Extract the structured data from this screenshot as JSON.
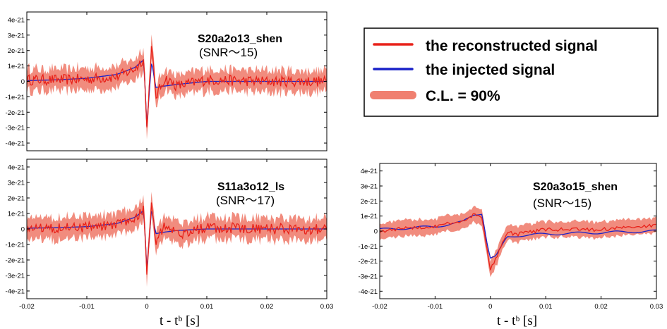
{
  "colors": {
    "reconstructed": "#e8221a",
    "injected": "#1a22c8",
    "band": "#f08070"
  },
  "legend": {
    "reconstructed": "the reconstructed signal",
    "injected": "the injected signal",
    "band": "C.L. = 90%"
  },
  "chart_data": [
    {
      "type": "line",
      "title": "S20a2o13_shen",
      "subtitle": "(SNR〜15)",
      "xlabel": "",
      "xlim": [
        -0.02,
        0.03
      ],
      "ylim": [
        -4.5e-21,
        4.5e-21
      ],
      "yticks": [
        "4e-21",
        "3e-21",
        "2e-21",
        "1e-21",
        "0",
        "-1e-21",
        "-2e-21",
        "-3e-21",
        "-4e-21"
      ],
      "xticks": [],
      "series": [
        {
          "name": "the reconstructed signal",
          "x": [
            -0.02,
            -0.015,
            -0.01,
            -0.005,
            -0.002,
            -0.0005,
            0,
            0.0008,
            0.0015,
            0.003,
            0.005,
            0.01,
            0.02,
            0.03
          ],
          "y": [
            1e-22,
            1e-22,
            1.5e-22,
            3e-22,
            8e-22,
            1.5e-21,
            -3.1e-21,
            2.3e-21,
            -1e-21,
            2e-22,
            -3e-22,
            1e-22,
            0.0,
            0.0
          ]
        },
        {
          "name": "the injected signal",
          "x": [
            -0.02,
            -0.015,
            -0.01,
            -0.005,
            -0.002,
            -0.0005,
            0,
            0.0008,
            0.0015,
            0.003,
            0.005,
            0.01,
            0.02,
            0.03
          ],
          "y": [
            5e-23,
            1e-22,
            2e-22,
            4.5e-22,
            9e-22,
            1.4e-21,
            -2.9e-21,
            1.3e-21,
            -4e-22,
            -3e-22,
            -2e-22,
            0.0,
            0.0,
            0.0
          ]
        }
      ],
      "band_halfwidth": 8e-22
    },
    {
      "type": "line",
      "title": "S11a3o12_ls",
      "subtitle": "(SNR〜17)",
      "xlabel": "t - tᵇ [s]",
      "xlim": [
        -0.02,
        0.03
      ],
      "ylim": [
        -4.5e-21,
        4.5e-21
      ],
      "yticks": [
        "4e-21",
        "3e-21",
        "2e-21",
        "1e-21",
        "0",
        "-1e-21",
        "-2e-21",
        "-3e-21",
        "-4e-21"
      ],
      "xticks": [
        "-0.02",
        "-0.01",
        "0",
        "0.01",
        "0.02",
        "0.03"
      ],
      "series": [
        {
          "name": "the reconstructed signal",
          "x": [
            -0.02,
            -0.015,
            -0.01,
            -0.005,
            -0.002,
            -0.0005,
            0,
            0.0008,
            0.0015,
            0.003,
            0.005,
            0.01,
            0.02,
            0.03
          ],
          "y": [
            5e-23,
            1e-22,
            1e-22,
            3e-22,
            7e-22,
            1.3e-21,
            -3e-21,
            1.8e-21,
            -8e-22,
            3e-22,
            -4e-22,
            1e-22,
            0.0,
            0.0
          ]
        },
        {
          "name": "the injected signal",
          "x": [
            -0.02,
            -0.015,
            -0.01,
            -0.005,
            -0.002,
            -0.0005,
            0,
            0.0008,
            0.0015,
            0.003,
            0.005,
            0.01,
            0.02,
            0.03
          ],
          "y": [
            5e-23,
            8e-23,
            1.5e-22,
            3.5e-22,
            7.5e-22,
            1.2e-21,
            -2.6e-21,
            1.3e-21,
            -3e-22,
            -2e-22,
            -1e-22,
            0.0,
            0.0,
            0.0
          ]
        }
      ],
      "band_halfwidth": 8e-22
    },
    {
      "type": "line",
      "title": "S20a3o15_shen",
      "subtitle": "(SNR〜15)",
      "xlabel": "t - tᵇ [s]",
      "xlim": [
        -0.02,
        0.03
      ],
      "ylim": [
        -4.5e-21,
        4.5e-21
      ],
      "yticks": [
        "4e-21",
        "3e-21",
        "2e-21",
        "1e-21",
        "0",
        "-1e-21",
        "-2e-21",
        "-3e-21",
        "-4e-21"
      ],
      "xticks": [
        "-0.02",
        "-0.01",
        "0",
        "0.01",
        "0.02",
        "0.03"
      ],
      "series": [
        {
          "name": "the reconstructed signal",
          "x": [
            -0.02,
            -0.015,
            -0.01,
            -0.005,
            -0.003,
            -0.0015,
            -0.0005,
            0,
            0.001,
            0.003,
            0.005,
            0.01,
            0.02,
            0.03
          ],
          "y": [
            0.0,
            2e-22,
            3e-22,
            7e-22,
            1.1e-21,
            9e-22,
            -1.5e-21,
            -2.6e-21,
            -1.8e-21,
            -1e-22,
            -2e-22,
            1e-22,
            1e-22,
            4e-22
          ]
        },
        {
          "name": "the injected signal",
          "x": [
            -0.02,
            -0.015,
            -0.01,
            -0.005,
            -0.003,
            -0.0015,
            -0.0005,
            0,
            0.001,
            0.003,
            0.005,
            0.01,
            0.02,
            0.03
          ],
          "y": [
            1e-22,
            2e-22,
            3e-22,
            6e-22,
            1.1e-21,
            1.2e-21,
            -1e-21,
            -1.8e-21,
            -1.7e-21,
            -4e-22,
            -3e-22,
            -2e-22,
            -1e-22,
            0.0
          ]
        }
      ],
      "band_halfwidth": 6e-22
    }
  ]
}
